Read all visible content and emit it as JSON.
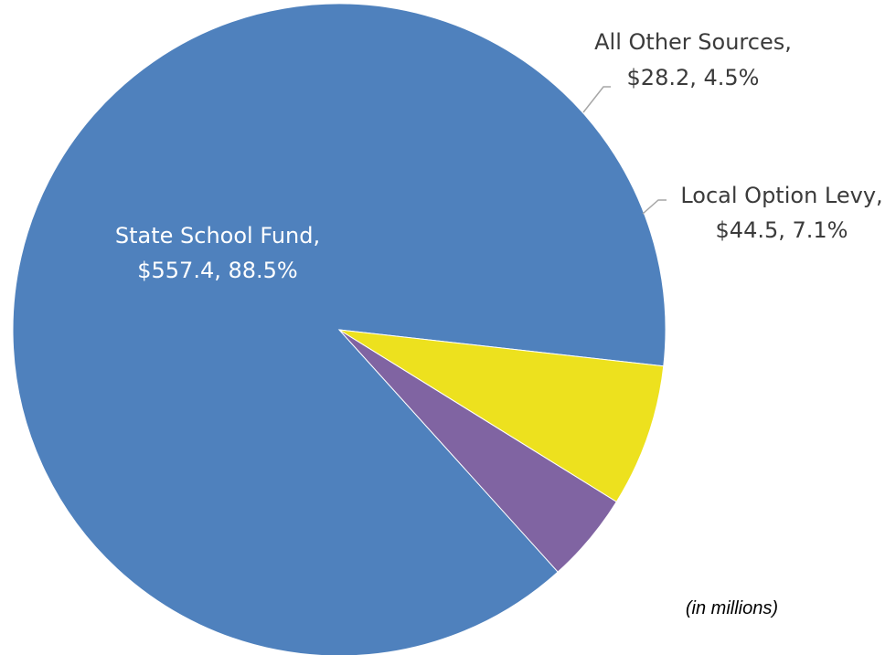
{
  "chart_data": {
    "type": "pie",
    "title": "",
    "unit_note": "(in millions)",
    "slices": [
      {
        "name": "State School Fund",
        "value": 557.4,
        "percent": 88.5,
        "value_label": "$557.4",
        "percent_label": "88.5%",
        "color": "#4f81bd"
      },
      {
        "name": "Local Option Levy",
        "value": 44.5,
        "percent": 7.1,
        "value_label": "$44.5",
        "percent_label": "7.1%",
        "color": "#ede11e"
      },
      {
        "name": "All Other Sources",
        "value": 28.2,
        "percent": 4.5,
        "value_label": "$28.2",
        "percent_label": "4.5%",
        "color": "#8064a2"
      }
    ]
  },
  "labels": {
    "state": {
      "line1": "State School Fund,",
      "line2": "$557.4, 88.5%"
    },
    "local": {
      "line1": "Local Option Levy,",
      "line2": "$44.5, 7.1%"
    },
    "other": {
      "line1": "All Other Sources,",
      "line2": "$28.2, 4.5%"
    }
  }
}
